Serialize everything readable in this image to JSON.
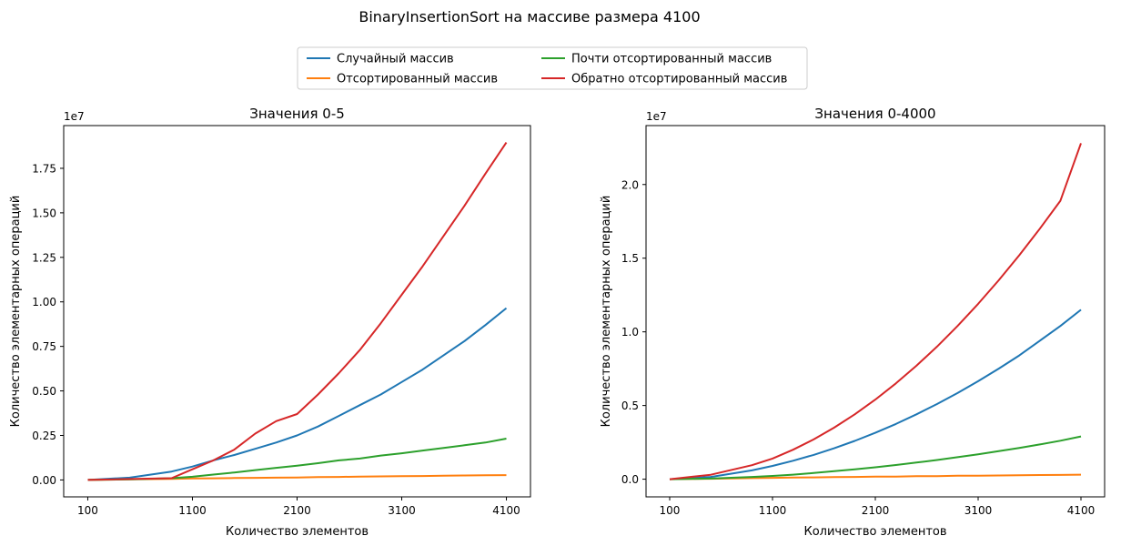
{
  "figure": {
    "suptitle": "BinaryInsertionSort на массиве размера 4100"
  },
  "legend": {
    "placement": "top-center",
    "entries": [
      {
        "label": "Случайный массив",
        "color": "#1f77b4"
      },
      {
        "label": "Отсортированный массив",
        "color": "#ff7f0e"
      },
      {
        "label": "Почти отсортированный массив",
        "color": "#2ca02c"
      },
      {
        "label": "Обратно отсортированный массив",
        "color": "#d62728"
      }
    ]
  },
  "chart_data": [
    {
      "type": "line",
      "title": "Значения 0-5",
      "xlabel": "Количество элементов",
      "ylabel": "Количество элементарных операций",
      "y_offset_label": "1e7",
      "xlim": [
        -130,
        4330
      ],
      "ylim": [
        -0.095,
        1.99
      ],
      "xticks": [
        100,
        1100,
        2100,
        3100,
        4100
      ],
      "xtick_labels": [
        "100",
        "1100",
        "2100",
        "3100",
        "4100"
      ],
      "yticks": [
        0,
        0.25,
        0.5,
        0.75,
        1.0,
        1.25,
        1.5,
        1.75
      ],
      "ytick_labels": [
        "0.00",
        "0.25",
        "0.50",
        "0.75",
        "1.00",
        "1.25",
        "1.50",
        "1.75"
      ],
      "grid": false,
      "x": [
        100,
        500,
        900,
        1100,
        1300,
        1500,
        1700,
        1900,
        2100,
        2300,
        2500,
        2700,
        2900,
        3100,
        3300,
        3500,
        3700,
        3900,
        4100
      ],
      "series": [
        {
          "name": "Случайный массив",
          "color": "#1f77b4",
          "values": [
            0.0,
            0.013,
            0.047,
            0.075,
            0.11,
            0.14,
            0.175,
            0.21,
            0.25,
            0.3,
            0.36,
            0.42,
            0.48,
            0.55,
            0.62,
            0.7,
            0.78,
            0.87,
            0.965
          ]
        },
        {
          "name": "Отсортированный массив",
          "color": "#ff7f0e",
          "values": [
            0.0,
            0.003,
            0.006,
            0.008,
            0.009,
            0.011,
            0.012,
            0.013,
            0.014,
            0.016,
            0.017,
            0.019,
            0.02,
            0.021,
            0.022,
            0.024,
            0.025,
            0.026,
            0.027
          ]
        },
        {
          "name": "Почти отсортированный массив",
          "color": "#2ca02c",
          "values": [
            0.0,
            0.003,
            0.01,
            0.018,
            0.03,
            0.042,
            0.055,
            0.068,
            0.08,
            0.094,
            0.11,
            0.12,
            0.137,
            0.15,
            0.165,
            0.18,
            0.195,
            0.21,
            0.232
          ]
        },
        {
          "name": "Обратно отсортированный массив",
          "color": "#d62728",
          "values": [
            0.0,
            0.005,
            0.01,
            0.06,
            0.11,
            0.17,
            0.26,
            0.33,
            0.37,
            0.48,
            0.6,
            0.73,
            0.88,
            1.04,
            1.2,
            1.37,
            1.54,
            1.72,
            1.895
          ]
        }
      ]
    },
    {
      "type": "line",
      "title": "Значения 0-4000",
      "xlabel": "Количество элементов",
      "ylabel": "Количество элементарных операций",
      "y_offset_label": "1e7",
      "xlim": [
        -130,
        4330
      ],
      "ylim": [
        -0.12,
        2.4
      ],
      "xticks": [
        100,
        1100,
        2100,
        3100,
        4100
      ],
      "xtick_labels": [
        "100",
        "1100",
        "2100",
        "3100",
        "4100"
      ],
      "yticks": [
        0,
        0.5,
        1.0,
        1.5,
        2.0
      ],
      "ytick_labels": [
        "0.0",
        "0.5",
        "1.0",
        "1.5",
        "2.0"
      ],
      "grid": false,
      "x": [
        100,
        500,
        900,
        1100,
        1300,
        1500,
        1700,
        1900,
        2100,
        2300,
        2500,
        2700,
        2900,
        3100,
        3300,
        3500,
        3700,
        3900,
        4100
      ],
      "series": [
        {
          "name": "Случайный массив",
          "color": "#1f77b4",
          "values": [
            0.0,
            0.015,
            0.06,
            0.09,
            0.125,
            0.165,
            0.21,
            0.26,
            0.315,
            0.375,
            0.44,
            0.51,
            0.585,
            0.665,
            0.75,
            0.84,
            0.94,
            1.04,
            1.15
          ]
        },
        {
          "name": "Отсортированный массив",
          "color": "#ff7f0e",
          "values": [
            0.0,
            0.003,
            0.007,
            0.009,
            0.011,
            0.012,
            0.014,
            0.015,
            0.017,
            0.018,
            0.02,
            0.021,
            0.023,
            0.024,
            0.025,
            0.027,
            0.028,
            0.029,
            0.031
          ]
        },
        {
          "name": "Почти отсортированный массив",
          "color": "#2ca02c",
          "values": [
            0.0,
            0.004,
            0.015,
            0.022,
            0.031,
            0.042,
            0.054,
            0.067,
            0.081,
            0.096,
            0.113,
            0.13,
            0.149,
            0.169,
            0.19,
            0.212,
            0.236,
            0.261,
            0.29
          ]
        },
        {
          "name": "Обратно отсортированный массив",
          "color": "#d62728",
          "values": [
            0.0,
            0.03,
            0.095,
            0.14,
            0.2,
            0.27,
            0.35,
            0.44,
            0.54,
            0.65,
            0.77,
            0.9,
            1.04,
            1.19,
            1.35,
            1.52,
            1.7,
            1.89,
            2.28
          ]
        }
      ]
    }
  ]
}
